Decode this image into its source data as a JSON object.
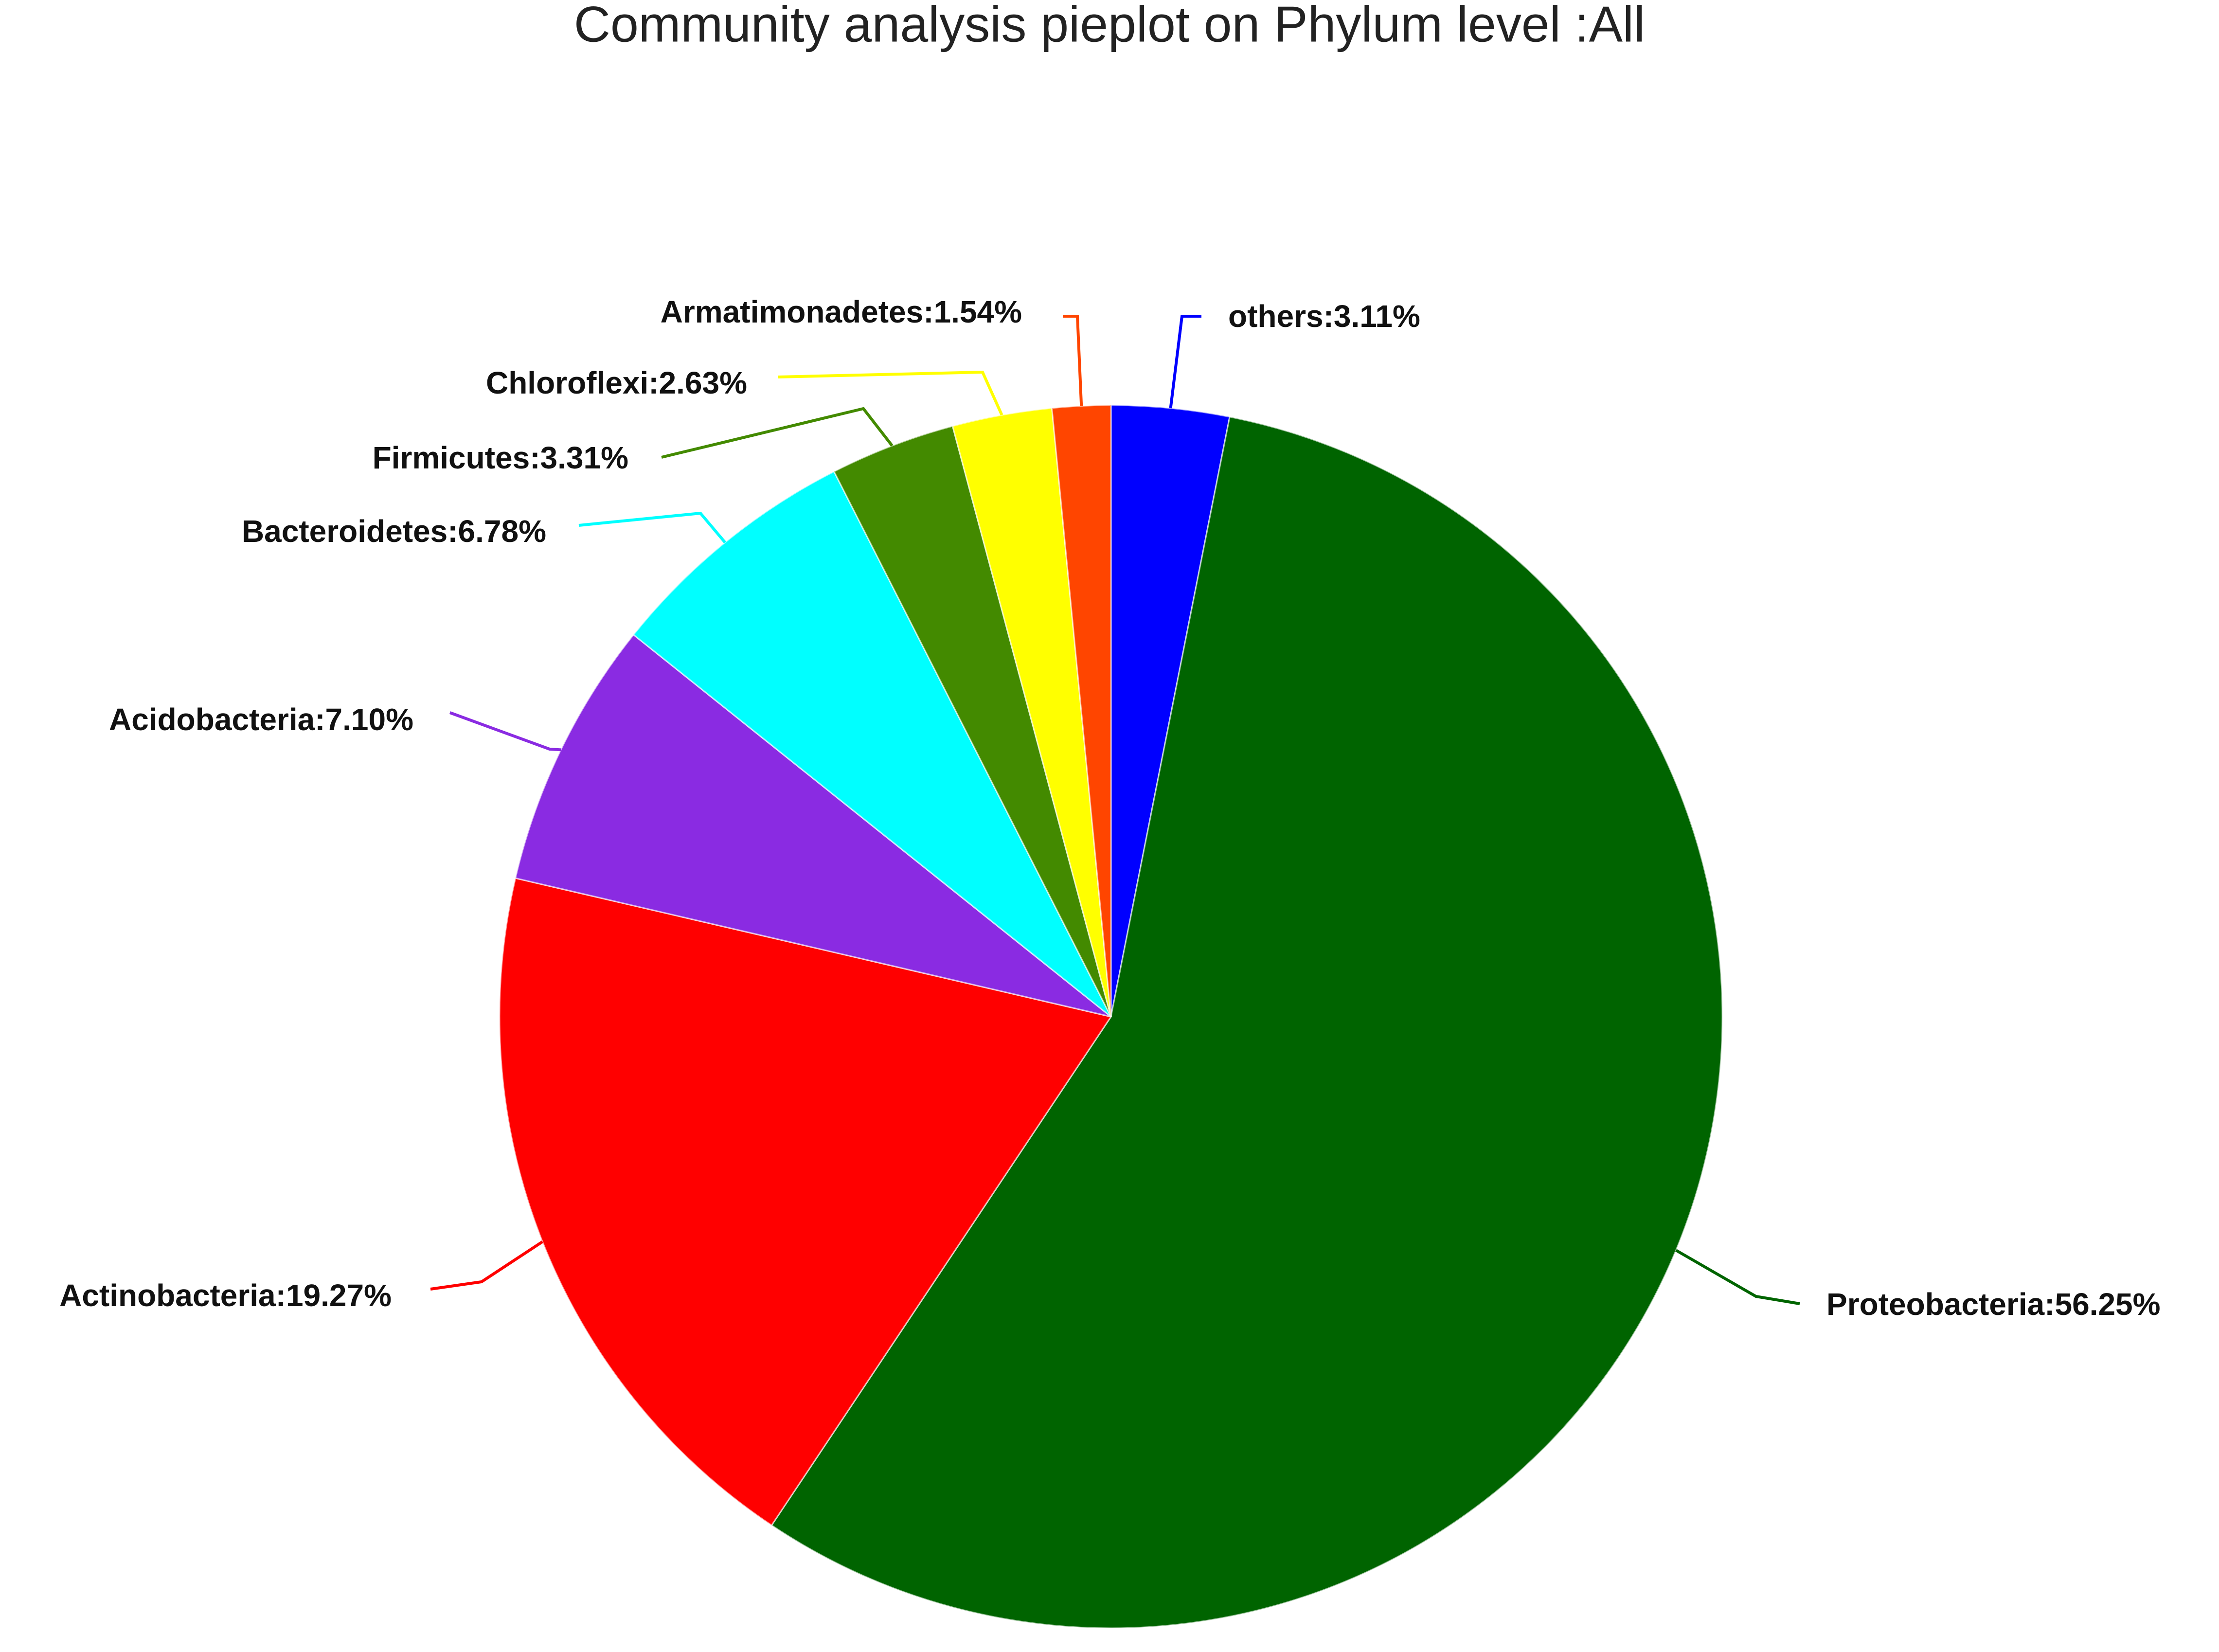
{
  "chart_data": {
    "type": "pie",
    "title": "Community analysis pieplot on Phylum level :All",
    "values": [
      3.11,
      56.25,
      19.27,
      7.1,
      6.78,
      3.31,
      2.63,
      1.54
    ],
    "value_labels": [
      "others:3.11%",
      "Proteobacteria:56.25%",
      "Actinobacteria:19.27%",
      "Acidobacteria:7.10%",
      "Bacteroidetes:6.78%",
      "Firmicutes:3.31%",
      "Chloroflexi:2.63%",
      "Armatimonadetes:1.54%"
    ],
    "colors": [
      "#0000ff",
      "#006400",
      "#ff0000",
      "#8a2be2",
      "#00ffff",
      "#438a00",
      "#ffff00",
      "#ff4500"
    ]
  }
}
